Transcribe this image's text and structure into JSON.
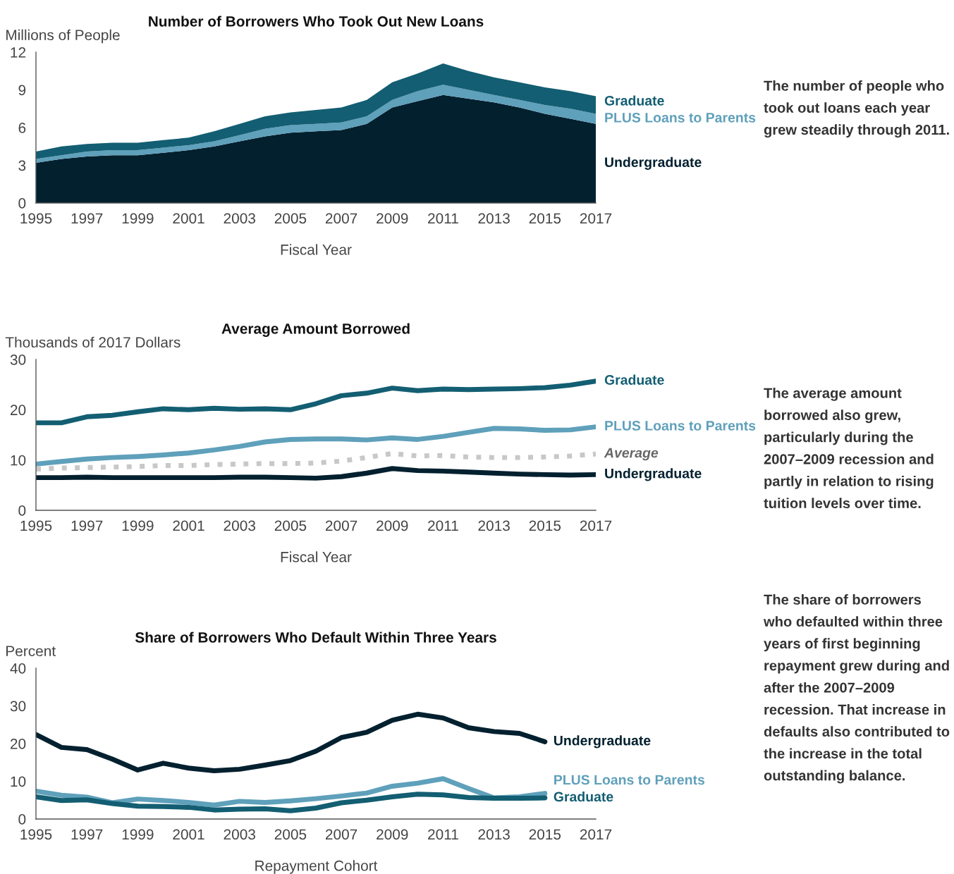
{
  "chart_data": [
    {
      "type": "area",
      "stacked": true,
      "title": "Number of Borrowers Who Took Out New Loans",
      "ylabel": "Millions of People",
      "xlabel": "Fiscal Year",
      "x": [
        1995,
        1996,
        1997,
        1998,
        1999,
        2000,
        2001,
        2002,
        2003,
        2004,
        2005,
        2006,
        2007,
        2008,
        2009,
        2010,
        2011,
        2012,
        2013,
        2014,
        2015,
        2016,
        2017
      ],
      "series": [
        {
          "name": "Undergraduate",
          "color": "#03202f",
          "values": [
            3.2,
            3.5,
            3.7,
            3.8,
            3.8,
            4.0,
            4.2,
            4.5,
            4.9,
            5.3,
            5.6,
            5.7,
            5.8,
            6.3,
            7.6,
            8.1,
            8.6,
            8.3,
            8.0,
            7.6,
            7.1,
            6.7,
            6.3
          ]
        },
        {
          "name": "PLUS Loans to Parents",
          "color": "#5fa0bb",
          "values": [
            0.3,
            0.3,
            0.4,
            0.4,
            0.4,
            0.4,
            0.4,
            0.4,
            0.5,
            0.6,
            0.6,
            0.6,
            0.6,
            0.6,
            0.6,
            0.8,
            0.8,
            0.7,
            0.6,
            0.6,
            0.7,
            0.8,
            0.8
          ]
        },
        {
          "name": "Graduate",
          "color": "#135e72",
          "values": [
            0.6,
            0.7,
            0.6,
            0.6,
            0.6,
            0.6,
            0.6,
            0.8,
            0.9,
            1.0,
            1.0,
            1.1,
            1.2,
            1.3,
            1.4,
            1.4,
            1.7,
            1.5,
            1.4,
            1.4,
            1.4,
            1.4,
            1.4
          ]
        }
      ],
      "xlim": [
        1995,
        2017
      ],
      "xticks": [
        1995,
        1997,
        1999,
        2001,
        2003,
        2005,
        2007,
        2009,
        2011,
        2013,
        2015,
        2017
      ],
      "ylim": [
        0,
        12
      ],
      "yticks": [
        0,
        3,
        6,
        9,
        12
      ],
      "grid": false,
      "legend": false,
      "annotations": [
        "The number of people who took out loans each year grew steadily through 2011."
      ]
    },
    {
      "type": "line",
      "title": "Average Amount Borrowed",
      "ylabel": "Thousands of 2017 Dollars",
      "xlabel": "Fiscal Year",
      "x": [
        1995,
        1996,
        1997,
        1998,
        1999,
        2000,
        2001,
        2002,
        2003,
        2004,
        2005,
        2006,
        2007,
        2008,
        2009,
        2010,
        2011,
        2012,
        2013,
        2014,
        2015,
        2016,
        2017
      ],
      "series": [
        {
          "name": "Graduate",
          "color": "#135e72",
          "values": [
            17.4,
            17.4,
            18.6,
            18.9,
            19.6,
            20.2,
            20.0,
            20.3,
            20.1,
            20.2,
            20.0,
            21.2,
            22.8,
            23.3,
            24.3,
            23.8,
            24.1,
            24.0,
            24.1,
            24.2,
            24.4,
            24.9,
            25.7
          ]
        },
        {
          "name": "PLUS Loans to Parents",
          "color": "#5fa0bb",
          "values": [
            9.2,
            9.7,
            10.2,
            10.5,
            10.7,
            11.0,
            11.4,
            12.0,
            12.7,
            13.6,
            14.1,
            14.2,
            14.2,
            14.0,
            14.4,
            14.1,
            14.7,
            15.5,
            16.3,
            16.2,
            15.9,
            16.0,
            16.6
          ]
        },
        {
          "name": "Average",
          "color": "#c8c8c8",
          "line_style": "dotted",
          "values": [
            8.2,
            8.4,
            8.5,
            8.6,
            8.7,
            8.9,
            8.9,
            9.1,
            9.2,
            9.3,
            9.3,
            9.4,
            9.8,
            10.5,
            11.3,
            10.8,
            10.9,
            10.6,
            10.5,
            10.5,
            10.6,
            10.8,
            11.2
          ]
        },
        {
          "name": "Undergraduate",
          "color": "#03202f",
          "values": [
            6.5,
            6.5,
            6.6,
            6.5,
            6.5,
            6.5,
            6.5,
            6.5,
            6.6,
            6.6,
            6.5,
            6.4,
            6.7,
            7.4,
            8.3,
            7.9,
            7.8,
            7.6,
            7.4,
            7.2,
            7.1,
            7.0,
            7.1
          ]
        }
      ],
      "xlim": [
        1995,
        2017
      ],
      "xticks": [
        1995,
        1997,
        1999,
        2001,
        2003,
        2005,
        2007,
        2009,
        2011,
        2013,
        2015,
        2017
      ],
      "ylim": [
        0,
        30
      ],
      "yticks": [
        0,
        10,
        20,
        30
      ],
      "grid": false,
      "legend": false,
      "line_style": "solid",
      "marker": "none",
      "annotations": [
        "The average amount borrowed also grew, particularly during the 2007–2009 recession and partly in relation to rising tuition levels over time."
      ]
    },
    {
      "type": "line",
      "title": "Share of Borrowers Who Default Within Three Years",
      "ylabel": "Percent",
      "xlabel": "Repayment Cohort",
      "x": [
        1995,
        1996,
        1997,
        1998,
        1999,
        2000,
        2001,
        2002,
        2003,
        2004,
        2005,
        2006,
        2007,
        2008,
        2009,
        2010,
        2011,
        2012,
        2013,
        2014,
        2015
      ],
      "series": [
        {
          "name": "Undergraduate",
          "color": "#03202f",
          "values": [
            22.4,
            19.0,
            18.4,
            15.9,
            13.0,
            14.8,
            13.5,
            12.8,
            13.2,
            14.3,
            15.5,
            18.0,
            21.6,
            23.0,
            26.2,
            27.8,
            26.8,
            24.2,
            23.2,
            22.7,
            20.5
          ]
        },
        {
          "name": "PLUS Loans to Parents",
          "color": "#5fa0bb",
          "values": [
            7.4,
            6.3,
            5.8,
            4.3,
            5.3,
            4.9,
            4.4,
            3.7,
            4.7,
            4.4,
            4.8,
            5.4,
            6.1,
            6.9,
            8.7,
            9.5,
            10.7,
            8.1,
            5.6,
            5.9,
            6.8
          ]
        },
        {
          "name": "Graduate",
          "color": "#135e72",
          "values": [
            5.9,
            4.9,
            5.1,
            4.1,
            3.4,
            3.3,
            3.1,
            2.4,
            2.6,
            2.7,
            2.2,
            2.9,
            4.3,
            5.0,
            5.9,
            6.6,
            6.4,
            5.7,
            5.5,
            5.5,
            5.6
          ]
        }
      ],
      "xlim": [
        1995,
        2017
      ],
      "xticks": [
        1995,
        1997,
        1999,
        2001,
        2003,
        2005,
        2007,
        2009,
        2011,
        2013,
        2015,
        2017
      ],
      "ylim": [
        0,
        40
      ],
      "yticks": [
        0,
        10,
        20,
        30,
        40
      ],
      "grid": false,
      "legend": false,
      "line_style": "solid",
      "marker": "none",
      "annotations": [
        "The share of borrowers who defaulted within three years of first beginning repayment grew during and after the 2007–2009 recession. That increase in defaults also contributed to the increase in the total outstanding balance."
      ]
    }
  ]
}
